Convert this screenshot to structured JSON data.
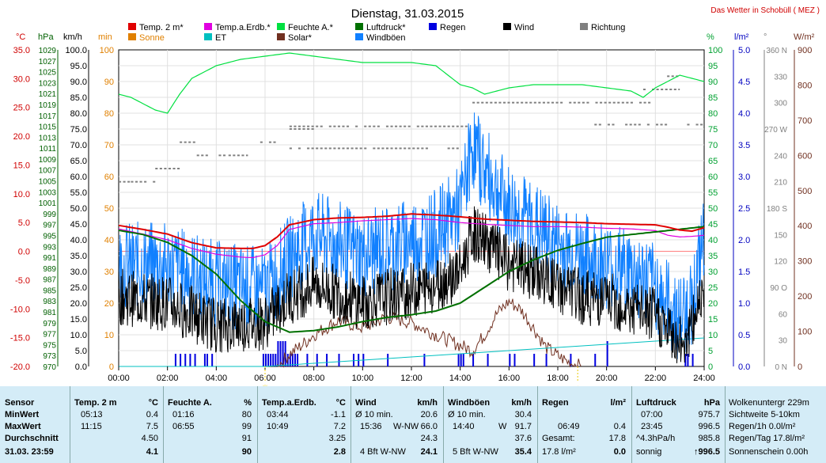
{
  "header": {
    "title": "Dienstag, 31.03.2015",
    "station": "Das Wetter in Schobüll ( MEZ )"
  },
  "legend": [
    {
      "label": "Temp. 2 m*",
      "color": "#e00000"
    },
    {
      "label": "Temp.a.Erdb.*",
      "color": "#e000e0"
    },
    {
      "label": "Feuchte A.*",
      "color": "#00e040"
    },
    {
      "label": "Luftdruck*",
      "color": "#007000"
    },
    {
      "label": "Regen",
      "color": "#0000e0"
    },
    {
      "label": "Wind",
      "color": "#000000"
    },
    {
      "label": "Richtung",
      "color": "#808080"
    },
    {
      "label": "Sonne",
      "color": "#e08000"
    },
    {
      "label": "ET",
      "color": "#00c0c0"
    },
    {
      "label": "Solar*",
      "color": "#703020"
    },
    {
      "label": "Windböen",
      "color": "#1080ff"
    }
  ],
  "axis_units": {
    "temp": "°C",
    "pressure": "hPa",
    "wind": "km/h",
    "sun": "min",
    "humidity": "%",
    "rain": "l/m²",
    "direction": "°",
    "solar": "W/m²"
  },
  "axis_ticks": {
    "temp": [
      "35.0",
      "30.0",
      "25.0",
      "20.0",
      "15.0",
      "10.0",
      "5.0",
      "0.0",
      "-5.0",
      "-10.0",
      "-15.0",
      "-20.0"
    ],
    "pressure": [
      "1029",
      "1027",
      "1025",
      "1023",
      "1021",
      "1019",
      "1017",
      "1015",
      "1013",
      "1011",
      "1009",
      "1007",
      "1005",
      "1003",
      "1001",
      "999",
      "997",
      "995",
      "993",
      "991",
      "989",
      "987",
      "985",
      "983",
      "981",
      "979",
      "977",
      "975",
      "973",
      "970"
    ],
    "wind": [
      "100.0",
      "95.0",
      "90.0",
      "85.0",
      "80.0",
      "75.0",
      "70.0",
      "65.0",
      "60.0",
      "55.0",
      "50.0",
      "45.0",
      "40.0",
      "35.0",
      "30.0",
      "25.0",
      "20.0",
      "15.0",
      "10.0",
      "5.0",
      "0.0"
    ],
    "sun": [
      "100",
      "90",
      "80",
      "70",
      "60",
      "50",
      "40",
      "30",
      "20",
      "10",
      "0"
    ],
    "humidity": [
      "100",
      "95",
      "90",
      "85",
      "80",
      "75",
      "70",
      "65",
      "60",
      "55",
      "50",
      "45",
      "40",
      "35",
      "30",
      "25",
      "20",
      "15",
      "10",
      "5",
      "0"
    ],
    "rain": [
      "5.0",
      "4.5",
      "4.0",
      "3.5",
      "3.0",
      "2.5",
      "2.0",
      "1.5",
      "1.0",
      "0.5",
      "0.0"
    ],
    "direction": [
      "360 N",
      "330",
      "300",
      "270 W",
      "240",
      "210",
      "180 S",
      "150",
      "120",
      "90 O",
      "60",
      "30",
      "0 N"
    ],
    "solar": [
      "900",
      "800",
      "700",
      "600",
      "500",
      "400",
      "300",
      "200",
      "100",
      "0"
    ],
    "time": [
      "00:00",
      "02:00",
      "04:00",
      "06:00",
      "08:00",
      "10:00",
      "12:00",
      "14:00",
      "16:00",
      "18:00",
      "20:00",
      "22:00",
      "24:00"
    ]
  },
  "chart_data": {
    "type": "line",
    "title": "Dienstag, 31.03.2015",
    "xlabel": "",
    "x_range_hours": [
      0,
      24
    ],
    "grid": true,
    "sunrise_time": "06:00",
    "sunset_time": "18:49",
    "series": [
      {
        "name": "Temp. 2 m*",
        "unit": "°C",
        "color": "#e00000",
        "x": [
          0,
          1,
          2,
          3,
          4,
          5,
          5.5,
          6,
          6.5,
          7,
          8,
          9,
          10,
          11,
          12,
          13,
          14,
          15,
          16,
          17,
          18,
          19,
          20,
          21,
          22,
          22.5,
          23,
          23.5,
          24
        ],
        "y": [
          4.5,
          3.8,
          3.0,
          1.5,
          0.6,
          0.5,
          0.5,
          1.0,
          2.5,
          4.6,
          5.5,
          5.8,
          5.9,
          6.1,
          6.5,
          6.3,
          6.0,
          5.6,
          5.4,
          5.2,
          5.1,
          5.0,
          4.8,
          4.7,
          4.6,
          4.2,
          3.7,
          3.5,
          4.1
        ]
      },
      {
        "name": "Temp.a.Erdb.*",
        "unit": "°C",
        "color": "#e000e0",
        "x": [
          0,
          1,
          2,
          3,
          4,
          5,
          5.5,
          6,
          6.5,
          7,
          8,
          9,
          10,
          11,
          12,
          13,
          14,
          15,
          16,
          17,
          18,
          19,
          20,
          21,
          22,
          22.5,
          23,
          23.5,
          24
        ],
        "y": [
          3.9,
          3.0,
          2.0,
          0.5,
          -0.5,
          -1.0,
          -1.1,
          -0.6,
          1.0,
          3.8,
          4.8,
          5.0,
          5.3,
          5.5,
          5.7,
          5.5,
          5.0,
          4.7,
          4.5,
          4.3,
          4.3,
          4.2,
          4.0,
          3.9,
          3.6,
          2.8,
          2.5,
          2.6,
          2.8
        ]
      },
      {
        "name": "Feuchte A.*",
        "unit": "%",
        "color": "#00e040",
        "x": [
          0,
          0.5,
          1,
          1.5,
          2,
          2.5,
          3,
          4,
          5,
          6,
          7,
          8,
          9,
          10,
          11,
          12,
          13,
          13.5,
          14,
          14.5,
          15,
          16,
          17,
          18,
          19,
          20,
          21,
          21.5,
          22,
          22.5,
          23,
          24
        ],
        "y": [
          86,
          85,
          83,
          81,
          80,
          86,
          91,
          95,
          97,
          98,
          99,
          98,
          97,
          96,
          96,
          96,
          95,
          92,
          89,
          88,
          86,
          88,
          89,
          89,
          89,
          88,
          87,
          85,
          88,
          90,
          92,
          90
        ]
      },
      {
        "name": "Luftdruck*",
        "unit": "hPa",
        "color": "#007000",
        "x": [
          0,
          1,
          2,
          3,
          4,
          5,
          6,
          7,
          8,
          9,
          10,
          11,
          12,
          13,
          14,
          15,
          16,
          17,
          18,
          19,
          20,
          21,
          22,
          23,
          24
        ],
        "y": [
          995.8,
          995.0,
          993.5,
          991.0,
          987.5,
          982.5,
          978.5,
          976.5,
          976.8,
          977.5,
          978.5,
          979.3,
          979.8,
          980.5,
          982.0,
          985.0,
          988.0,
          990.2,
          992.0,
          993.3,
          994.5,
          995.0,
          995.5,
          996.0,
          996.5
        ]
      },
      {
        "name": "Wind",
        "unit": "km/h",
        "color": "#000000",
        "min": 7.5,
        "max": 66.0,
        "average": 24.3
      },
      {
        "name": "Windböen",
        "unit": "km/h",
        "color": "#1080ff",
        "max": 91.7,
        "average": 37.6
      },
      {
        "name": "Solar*",
        "unit": "W/m²",
        "color": "#703020",
        "x": [
          6.5,
          7,
          7.5,
          8,
          9,
          10,
          11,
          12,
          13,
          13.5,
          14,
          14.5,
          15,
          15.5,
          16,
          16.5,
          17,
          17.5,
          18,
          18.5,
          19
        ],
        "y": [
          0,
          35,
          60,
          90,
          130,
          110,
          140,
          125,
          90,
          75,
          60,
          45,
          90,
          150,
          185,
          160,
          110,
          55,
          30,
          10,
          0
        ]
      },
      {
        "name": "ET",
        "unit": "l/m²",
        "color": "#00c0c0",
        "x": [
          0,
          6,
          8,
          12,
          16,
          20,
          24
        ],
        "y": [
          0,
          0,
          0.05,
          0.15,
          0.25,
          0.35,
          0.45
        ]
      },
      {
        "name": "Regen",
        "unit": "l/m²",
        "color": "#0000e0",
        "total": 17.8
      }
    ]
  },
  "summary": {
    "sensor": {
      "header": "Sensor",
      "rows": [
        "MinWert",
        "MaxWert",
        "Durchschnitt",
        "31.03. 23:59"
      ]
    },
    "temp2m": {
      "header": "Temp. 2 m",
      "unit": "°C",
      "min_time": "05:13",
      "min": "0.4",
      "max_time": "11:15",
      "max": "7.5",
      "avg": "4.50",
      "current": "4.1"
    },
    "humidity": {
      "header": "Feuchte A.",
      "unit": "%",
      "min_time": "01:16",
      "min": "80",
      "max_time": "06:55",
      "max": "99",
      "avg": "91",
      "current": "90"
    },
    "ground_temp": {
      "header": "Temp.a.Erdb.",
      "unit": "°C",
      "min_time": "03:44",
      "min": "-1.1",
      "max_time": "10:49",
      "max": "7.2",
      "avg": "3.25",
      "current": "2.8"
    },
    "wind": {
      "header": "Wind",
      "unit": "km/h",
      "r1_label": "Ø 10 min.",
      "r1_value": "20.6",
      "max_time": "15:36",
      "max_dir": "W-NW",
      "max": "66.0",
      "avg": "24.3",
      "current_desc": "4 Bft W-NW",
      "current": "24.1"
    },
    "gusts": {
      "header": "Windböen",
      "unit": "km/h",
      "r1_label": "Ø 10 min.",
      "r1_value": "30.4",
      "max_time": "14:40",
      "max_dir": "W",
      "max": "91.7",
      "avg": "37.6",
      "current_desc": "5 Bft W-NW",
      "current": "35.4"
    },
    "rain": {
      "header": "Regen",
      "unit": "l/m²",
      "max_time": "06:49",
      "max": "0.4",
      "total_label": "Gesamt:",
      "total": "17.8",
      "current_desc": "17.8 l/m²",
      "current": "0.0"
    },
    "pressure": {
      "header": "Luftdruck",
      "unit": "hPa",
      "min_time": "07:00",
      "min": "975.7",
      "max_time": "23:45",
      "max": "996.5",
      "trend_label": "^4.3hPa/h",
      "avg": "985.8",
      "current_desc": "sonnig",
      "current": "↑996.5"
    },
    "misc": {
      "rows": [
        "Wolkenuntergr  229m",
        "Sichtweite  5-10km",
        "Regen/1h  0.0l/m²",
        "Regen/Tag  17.8l/m²",
        "Sonnenschein  0.00h"
      ]
    }
  }
}
